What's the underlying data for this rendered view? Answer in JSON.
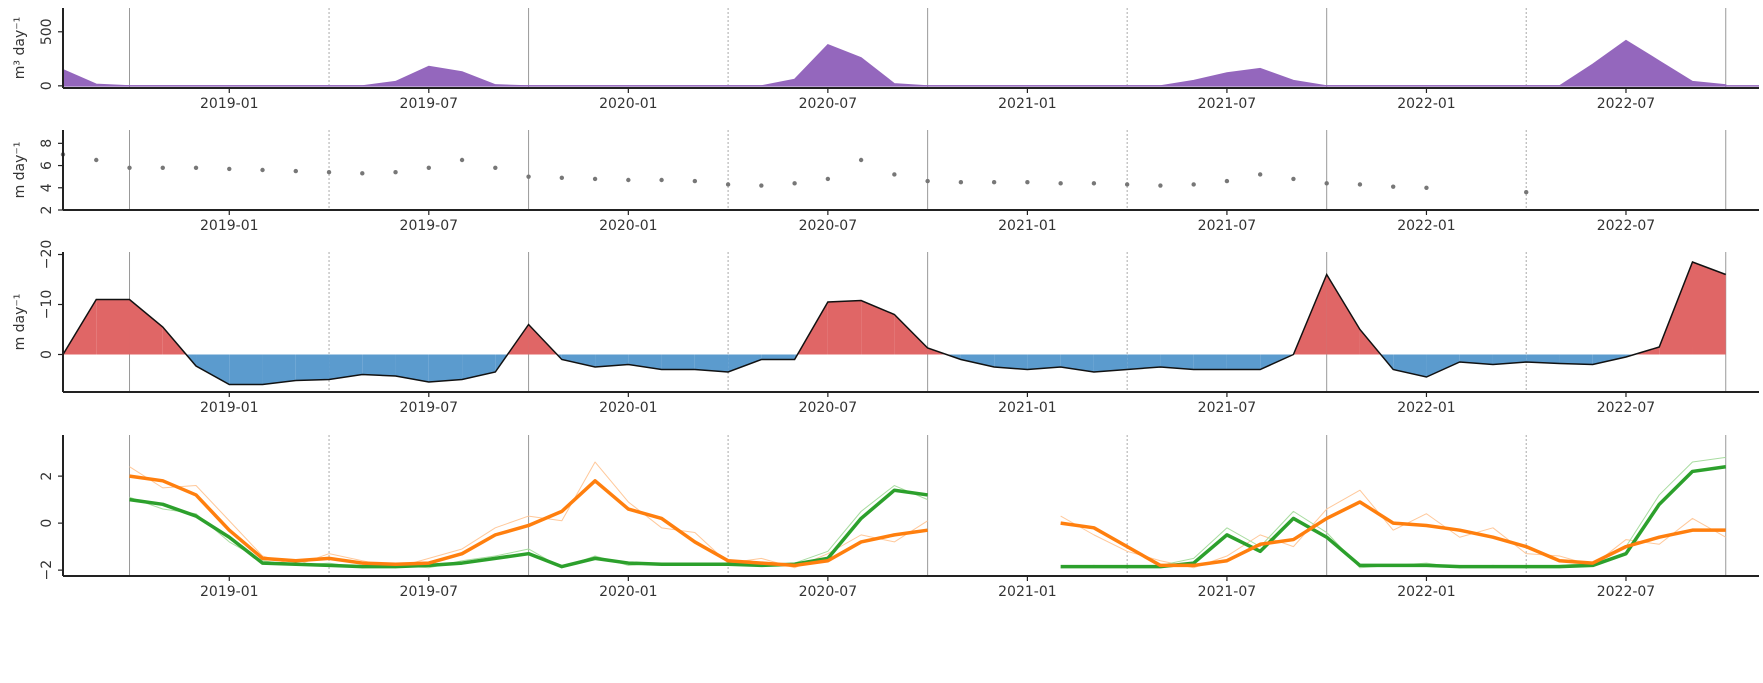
{
  "chart_data": [
    {
      "type": "area",
      "ylabel": "m³ day⁻¹",
      "color": "#9467bd",
      "xlim": [
        "2018-08",
        "2022-11"
      ],
      "xticks": [
        "2019-01",
        "2019-07",
        "2020-01",
        "2020-07",
        "2021-01",
        "2021-07",
        "2022-01",
        "2022-07"
      ],
      "ylim": [
        -20,
        720
      ],
      "yticks": [
        0,
        500
      ],
      "vlines_solid": [
        "2018-10",
        "2019-10",
        "2020-10",
        "2021-10",
        "2022-10"
      ],
      "vlines_dotted": [
        "2019-04",
        "2020-04",
        "2021-04",
        "2022-04"
      ],
      "x": [
        "2018-08",
        "2018-09",
        "2018-10",
        "2018-11",
        "2018-12",
        "2019-01",
        "2019-02",
        "2019-03",
        "2019-04",
        "2019-05",
        "2019-06",
        "2019-07",
        "2019-08",
        "2019-09",
        "2019-10",
        "2019-11",
        "2019-12",
        "2020-01",
        "2020-02",
        "2020-03",
        "2020-04",
        "2020-05",
        "2020-06",
        "2020-07",
        "2020-08",
        "2020-09",
        "2020-10",
        "2020-11",
        "2020-12",
        "2021-01",
        "2021-02",
        "2021-03",
        "2021-04",
        "2021-05",
        "2021-06",
        "2021-07",
        "2021-08",
        "2021-09",
        "2021-10",
        "2021-11",
        "2021-12",
        "2022-01",
        "2022-02",
        "2022-03",
        "2022-04",
        "2022-05",
        "2022-06",
        "2022-07",
        "2022-08",
        "2022-09",
        "2022-10"
      ],
      "values": [
        150,
        15,
        0,
        0,
        0,
        0,
        0,
        0,
        0,
        0,
        40,
        180,
        130,
        10,
        0,
        0,
        0,
        0,
        0,
        0,
        0,
        0,
        60,
        380,
        260,
        20,
        0,
        0,
        0,
        0,
        0,
        0,
        0,
        0,
        50,
        120,
        160,
        50,
        0,
        0,
        0,
        0,
        0,
        0,
        0,
        0,
        200,
        420,
        230,
        40,
        10
      ]
    },
    {
      "type": "scatter",
      "ylabel": "m day⁻¹",
      "color": "#777777",
      "xlim": [
        "2018-08",
        "2022-11"
      ],
      "xticks": [
        "2019-01",
        "2019-07",
        "2020-01",
        "2020-07",
        "2021-01",
        "2021-07",
        "2022-01",
        "2022-07"
      ],
      "ylim": [
        2,
        9.2
      ],
      "yticks": [
        2,
        4,
        6,
        8
      ],
      "vlines_solid": [
        "2018-10",
        "2019-10",
        "2020-10",
        "2021-10",
        "2022-10"
      ],
      "vlines_dotted": [
        "2019-04",
        "2020-04",
        "2021-04",
        "2022-04"
      ],
      "x": [
        "2018-08",
        "2018-09",
        "2018-10",
        "2018-11",
        "2018-12",
        "2019-01",
        "2019-02",
        "2019-03",
        "2019-04",
        "2019-05",
        "2019-06",
        "2019-07",
        "2019-08",
        "2019-09",
        "2019-10",
        "2019-11",
        "2019-12",
        "2020-01",
        "2020-02",
        "2020-03",
        "2020-04",
        "2020-05",
        "2020-06",
        "2020-07",
        "2020-08",
        "2020-09",
        "2020-10",
        "2020-11",
        "2020-12",
        "2021-01",
        "2021-02",
        "2021-03",
        "2021-04",
        "2021-05",
        "2021-06",
        "2021-07",
        "2021-08",
        "2021-09",
        "2021-10",
        "2021-11",
        "2021-12",
        "2022-01",
        "2022-02",
        "2022-03",
        "2022-04",
        "2022-05",
        "2022-06",
        "2022-07",
        "2022-08",
        "2022-09",
        "2022-10"
      ],
      "values": [
        7.0,
        6.5,
        5.8,
        5.8,
        5.8,
        5.7,
        5.6,
        5.5,
        5.4,
        5.3,
        5.4,
        5.8,
        6.5,
        5.8,
        5.0,
        4.9,
        4.8,
        4.7,
        4.7,
        4.6,
        4.3,
        4.2,
        4.4,
        4.8,
        6.5,
        5.2,
        4.6,
        4.5,
        4.5,
        4.5,
        4.4,
        4.4,
        4.3,
        4.2,
        4.3,
        4.6,
        5.2,
        4.8,
        4.4,
        4.3,
        4.1,
        4.0,
        null,
        null,
        3.6,
        null,
        null,
        null,
        null,
        null,
        null
      ]
    },
    {
      "type": "fill_between",
      "ylabel": "m day⁻¹",
      "line_color": "#111111",
      "negative_color": "#e06666",
      "positive_color": "#5b9bce",
      "xlim": [
        "2018-08",
        "2022-11"
      ],
      "xticks": [
        "2019-01",
        "2019-07",
        "2020-01",
        "2020-07",
        "2021-01",
        "2021-07",
        "2022-01",
        "2022-07"
      ],
      "ylim": [
        7.5,
        -20.5
      ],
      "yticks": [
        {
          "value": -20,
          "label": "−20"
        },
        {
          "value": -10,
          "label": "−10"
        },
        0
      ],
      "vlines_solid": [
        "2018-10",
        "2019-10",
        "2020-10",
        "2021-10",
        "2022-10"
      ],
      "vlines_dotted": [
        "2019-04",
        "2020-04",
        "2021-04",
        "2022-04"
      ],
      "x": [
        "2018-08",
        "2018-09",
        "2018-10",
        "2018-11",
        "2018-12",
        "2019-01",
        "2019-02",
        "2019-03",
        "2019-04",
        "2019-05",
        "2019-06",
        "2019-07",
        "2019-08",
        "2019-09",
        "2019-10",
        "2019-11",
        "2019-12",
        "2020-01",
        "2020-02",
        "2020-03",
        "2020-04",
        "2020-05",
        "2020-06",
        "2020-07",
        "2020-08",
        "2020-09",
        "2020-10",
        "2020-11",
        "2020-12",
        "2021-01",
        "2021-02",
        "2021-03",
        "2021-04",
        "2021-05",
        "2021-06",
        "2021-07",
        "2021-08",
        "2021-09",
        "2021-10",
        "2021-11",
        "2021-12",
        "2022-01",
        "2022-02",
        "2022-03",
        "2022-04",
        "2022-05",
        "2022-06",
        "2022-07",
        "2022-08",
        "2022-09",
        "2022-10"
      ],
      "values": [
        0,
        -11,
        -11,
        -5.5,
        2.3,
        6,
        6,
        5.2,
        5,
        4,
        4.3,
        5.5,
        5,
        3.5,
        -6,
        1,
        2.5,
        2,
        3,
        3,
        3.5,
        1,
        1,
        -10.5,
        -10.8,
        -8,
        -1.3,
        1,
        2.5,
        3,
        2.5,
        3.5,
        3,
        2.5,
        3,
        3,
        3,
        0,
        -16,
        -5,
        3,
        4.5,
        1.5,
        2,
        1.5,
        1.8,
        2,
        0.5,
        -1.5,
        -18.5,
        -16
      ]
    },
    {
      "type": "line",
      "xlim": [
        "2018-08",
        "2022-11"
      ],
      "xticks": [
        "2019-01",
        "2019-07",
        "2020-01",
        "2020-07",
        "2021-01",
        "2021-07",
        "2022-01",
        "2022-07"
      ],
      "ylim": [
        -2.25,
        3.75
      ],
      "yticks": [
        {
          "value": -2,
          "label": "−2"
        },
        0,
        2
      ],
      "vlines_solid": [
        "2018-10",
        "2019-10",
        "2020-10",
        "2021-10",
        "2022-10"
      ],
      "vlines_dotted": [
        "2019-04",
        "2020-04",
        "2021-04",
        "2022-04"
      ],
      "x": [
        "2018-08",
        "2018-09",
        "2018-10",
        "2018-11",
        "2018-12",
        "2019-01",
        "2019-02",
        "2019-03",
        "2019-04",
        "2019-05",
        "2019-06",
        "2019-07",
        "2019-08",
        "2019-09",
        "2019-10",
        "2019-11",
        "2019-12",
        "2020-01",
        "2020-02",
        "2020-03",
        "2020-04",
        "2020-05",
        "2020-06",
        "2020-07",
        "2020-08",
        "2020-09",
        "2020-10",
        "2020-11",
        "2020-12",
        "2021-01",
        "2021-02",
        "2021-03",
        "2021-04",
        "2021-05",
        "2021-06",
        "2021-07",
        "2021-08",
        "2021-09",
        "2021-10",
        "2021-11",
        "2021-12",
        "2022-01",
        "2022-02",
        "2022-03",
        "2022-04",
        "2022-05",
        "2022-06",
        "2022-07",
        "2022-08",
        "2022-09",
        "2022-10"
      ],
      "series": [
        {
          "color": "#ffc89a",
          "width": 1,
          "values": [
            null,
            null,
            2.4,
            1.5,
            1.6,
            0.1,
            -1.4,
            -1.8,
            -1.3,
            -1.6,
            -1.9,
            -1.5,
            -1.1,
            -0.2,
            0.3,
            0.1,
            2.6,
            0.9,
            -0.2,
            -0.4,
            -1.7,
            -1.5,
            -1.9,
            -1.3,
            -0.5,
            -0.8,
            0.1,
            null,
            null,
            null,
            0.3,
            -0.5,
            -1.2,
            -1.6,
            -1.9,
            -1.4,
            -0.5,
            -1.0,
            0.6,
            1.4,
            -0.3,
            0.4,
            -0.6,
            -0.2,
            -1.3,
            -1.4,
            -1.8,
            -0.7,
            -0.9,
            0.2,
            -0.6
          ]
        },
        {
          "color": "#a8dca0",
          "width": 1,
          "values": [
            null,
            null,
            1.1,
            0.6,
            0.4,
            -0.8,
            -1.6,
            -1.8,
            -1.7,
            -1.9,
            -1.8,
            -1.9,
            -1.6,
            -1.4,
            -1.1,
            -1.9,
            -1.4,
            -1.8,
            -1.7,
            -1.8,
            -1.7,
            -1.8,
            -1.7,
            -1.2,
            0.5,
            1.6,
            1.0,
            null,
            null,
            null,
            -1.9,
            -1.8,
            -1.9,
            -1.8,
            -1.5,
            -0.2,
            -1.0,
            0.5,
            -0.4,
            -1.9,
            -1.8,
            -1.7,
            -1.9,
            -1.8,
            -1.9,
            -1.8,
            -1.7,
            -1.0,
            1.2,
            2.6,
            2.8
          ]
        },
        {
          "color": "#2ca02c",
          "width": 3.5,
          "values": [
            null,
            null,
            1.0,
            0.8,
            0.3,
            -0.6,
            -1.7,
            -1.75,
            -1.8,
            -1.85,
            -1.85,
            -1.8,
            -1.7,
            -1.5,
            -1.3,
            -1.85,
            -1.5,
            -1.7,
            -1.75,
            -1.75,
            -1.75,
            -1.8,
            -1.75,
            -1.5,
            0.2,
            1.4,
            1.2,
            null,
            null,
            null,
            -1.85,
            -1.85,
            -1.85,
            -1.85,
            -1.7,
            -0.5,
            -1.2,
            0.2,
            -0.6,
            -1.8,
            -1.8,
            -1.8,
            -1.85,
            -1.85,
            -1.85,
            -1.85,
            -1.8,
            -1.3,
            0.8,
            2.2,
            2.4
          ]
        },
        {
          "color": "#ff7f0e",
          "width": 3.5,
          "values": [
            null,
            null,
            2.0,
            1.8,
            1.2,
            -0.3,
            -1.5,
            -1.6,
            -1.5,
            -1.7,
            -1.75,
            -1.7,
            -1.3,
            -0.5,
            -0.1,
            0.5,
            1.8,
            0.6,
            0.2,
            -0.8,
            -1.6,
            -1.7,
            -1.8,
            -1.6,
            -0.8,
            -0.5,
            -0.3,
            null,
            null,
            null,
            0,
            -0.2,
            -1.0,
            -1.8,
            -1.8,
            -1.6,
            -0.9,
            -0.7,
            0.2,
            0.9,
            0.0,
            -0.1,
            -0.3,
            -0.6,
            -1.0,
            -1.6,
            -1.7,
            -1.0,
            -0.6,
            -0.3,
            -0.3
          ]
        }
      ]
    }
  ]
}
